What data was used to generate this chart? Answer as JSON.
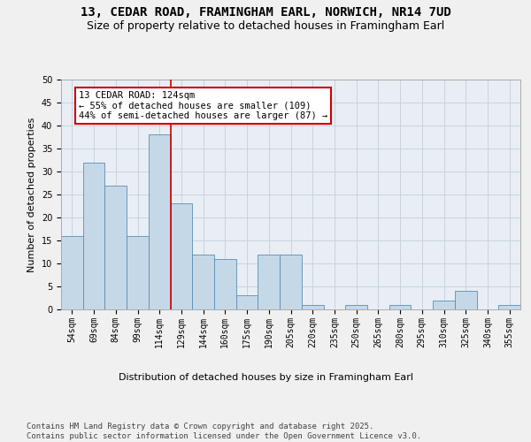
{
  "title1": "13, CEDAR ROAD, FRAMINGHAM EARL, NORWICH, NR14 7UD",
  "title2": "Size of property relative to detached houses in Framingham Earl",
  "xlabel": "Distribution of detached houses by size in Framingham Earl",
  "ylabel": "Number of detached properties",
  "categories": [
    "54sqm",
    "69sqm",
    "84sqm",
    "99sqm",
    "114sqm",
    "129sqm",
    "144sqm",
    "160sqm",
    "175sqm",
    "190sqm",
    "205sqm",
    "220sqm",
    "235sqm",
    "250sqm",
    "265sqm",
    "280sqm",
    "295sqm",
    "310sqm",
    "325sqm",
    "340sqm",
    "355sqm"
  ],
  "values": [
    16,
    32,
    27,
    16,
    38,
    23,
    12,
    11,
    3,
    12,
    12,
    1,
    0,
    1,
    0,
    1,
    0,
    2,
    4,
    0,
    1
  ],
  "bar_color": "#c5d8e8",
  "bar_edge_color": "#5a8db5",
  "grid_color": "#c8d4e0",
  "bg_color": "#e8eef4",
  "fig_bg_color": "#f0f0f0",
  "annotation_text": "13 CEDAR ROAD: 124sqm\n← 55% of detached houses are smaller (109)\n44% of semi-detached houses are larger (87) →",
  "annotation_box_color": "#ffffff",
  "annotation_box_edge": "#cc0000",
  "vline_color": "#cc0000",
  "ylim": [
    0,
    50
  ],
  "yticks": [
    0,
    5,
    10,
    15,
    20,
    25,
    30,
    35,
    40,
    45,
    50
  ],
  "footer": "Contains HM Land Registry data © Crown copyright and database right 2025.\nContains public sector information licensed under the Open Government Licence v3.0.",
  "title_fontsize": 10,
  "subtitle_fontsize": 9,
  "axis_label_fontsize": 8,
  "tick_fontsize": 7,
  "annotation_fontsize": 7.5,
  "footer_fontsize": 6.5
}
